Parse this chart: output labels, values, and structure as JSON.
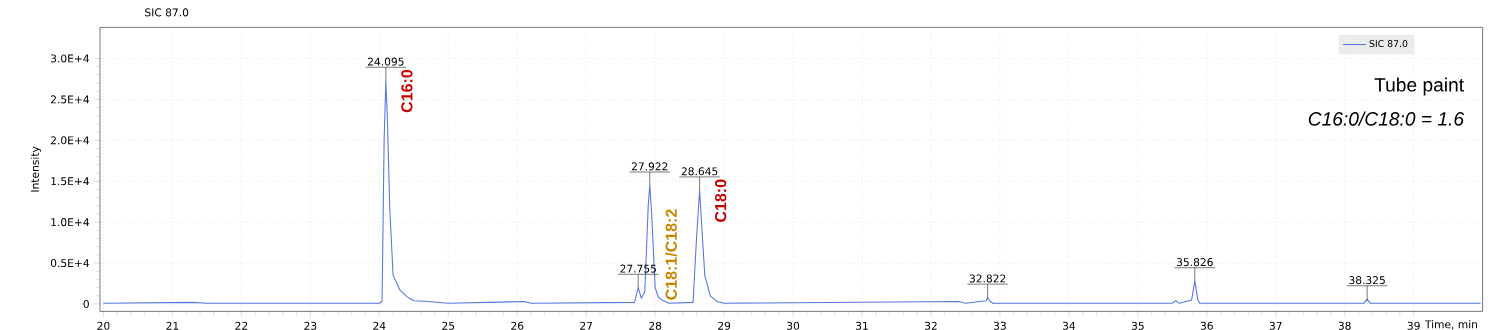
{
  "chart_data": {
    "type": "line",
    "title": "SIC 87.0",
    "xlabel": "Time, min",
    "ylabel": "Intensity",
    "xlim": [
      19.95,
      40
    ],
    "ylim": [
      -900,
      33800
    ],
    "xticks": [
      20,
      21,
      22,
      23,
      24,
      25,
      26,
      27,
      28,
      29,
      30,
      31,
      32,
      33,
      34,
      35,
      36,
      37,
      38,
      39
    ],
    "yticks": [
      0,
      {
        "value": 5000,
        "label": "0.5E+4"
      },
      {
        "value": 10000,
        "label": "1.0E+4"
      },
      {
        "value": 15000,
        "label": "1.5E+4"
      },
      {
        "value": 20000,
        "label": "2.0E+4"
      },
      {
        "value": 25000,
        "label": "2.5E+4"
      },
      {
        "value": 30000,
        "label": "3.0E+4"
      }
    ],
    "grid": true,
    "legend": "top right",
    "marker": "none",
    "line_style": "solid",
    "series": [
      {
        "name": "SIC 87.0",
        "color": "#5577dd",
        "x": [
          20,
          21.3,
          21.5,
          24.0,
          24.04,
          24.07,
          24.095,
          24.12,
          24.15,
          24.2,
          24.3,
          24.4,
          24.5,
          24.7,
          25.0,
          26.1,
          26.2,
          27.7,
          27.755,
          27.8,
          27.85,
          27.9,
          27.922,
          27.95,
          28.0,
          28.05,
          28.1,
          28.2,
          28.55,
          28.6,
          28.645,
          28.68,
          28.72,
          28.8,
          28.9,
          29.0,
          32.4,
          32.5,
          32.8,
          32.822,
          32.86,
          32.9,
          35.5,
          35.55,
          35.6,
          35.78,
          35.826,
          35.87,
          35.9,
          38.28,
          38.325,
          38.37,
          39.97
        ],
        "values": [
          100,
          200,
          100,
          100,
          300,
          20000,
          27300,
          22000,
          12000,
          3500,
          1700,
          900,
          400,
          300,
          100,
          300,
          100,
          200,
          2000,
          700,
          1500,
          12000,
          14500,
          11000,
          2000,
          800,
          500,
          100,
          200,
          8000,
          13900,
          9000,
          3500,
          1000,
          300,
          100,
          300,
          100,
          400,
          800,
          300,
          100,
          100,
          400,
          100,
          500,
          2800,
          500,
          100,
          100,
          600,
          100,
          100
        ]
      }
    ],
    "annotations": [
      {
        "text": "24.095",
        "x": 24.095,
        "y": 27300
      },
      {
        "text": "27.755",
        "x": 27.755,
        "y": 2000
      },
      {
        "text": "27.922",
        "x": 27.922,
        "y": 14500
      },
      {
        "text": "28.645",
        "x": 28.645,
        "y": 13900
      },
      {
        "text": "32.822",
        "x": 32.822,
        "y": 800
      },
      {
        "text": "35.826",
        "x": 35.826,
        "y": 2800
      },
      {
        "text": "38.325",
        "x": 38.325,
        "y": 600
      },
      {
        "text": "C16:0",
        "x": 24.095,
        "y": 27300
      },
      {
        "text": "C18:1/C18:2",
        "x": 27.922,
        "y": 14500
      },
      {
        "text": "C18:0",
        "x": 28.645,
        "y": 13900
      },
      "Tube paint",
      "C16:0/C18:0 = 1.6"
    ]
  }
}
